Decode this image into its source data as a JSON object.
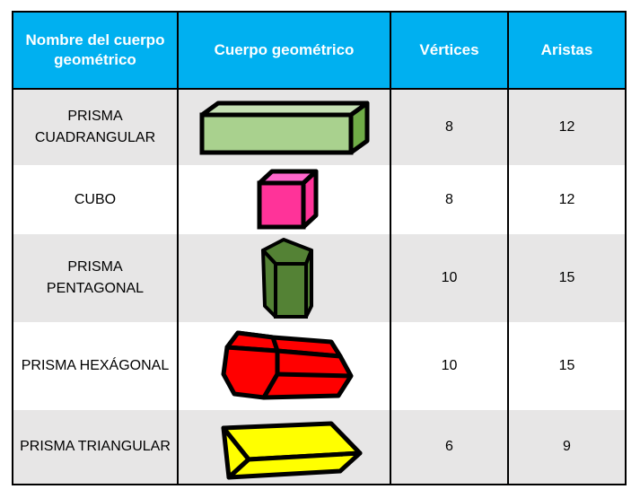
{
  "header": {
    "col_name": "Nombre del cuerpo geométrico",
    "col_body": "Cuerpo geométrico",
    "col_vertices": "Vértices",
    "col_edges": "Aristas"
  },
  "rows": [
    {
      "name": "PRISMA CUADRANGULAR",
      "shape": "rectangular-prism-icon",
      "color": "#a9d18e",
      "vertices": "8",
      "edges": "12"
    },
    {
      "name": "CUBO",
      "shape": "cube-icon",
      "color": "#ff3399",
      "vertices": "8",
      "edges": "12"
    },
    {
      "name": "PRISMA PENTAGONAL",
      "shape": "pentagonal-prism-icon",
      "color": "#548235",
      "vertices": "10",
      "edges": "15"
    },
    {
      "name": "PRISMA HEXÁGONAL",
      "shape": "hexagonal-prism-icon",
      "color": "#ff0000",
      "vertices": "10",
      "edges": "15"
    },
    {
      "name": "PRISMA TRIANGULAR",
      "shape": "triangular-prism-icon",
      "color": "#ffff00",
      "vertices": "6",
      "edges": "9"
    }
  ],
  "colors": {
    "header_bg": "#00b0f0",
    "row_grey": "#e7e6e6",
    "border": "#000000"
  }
}
